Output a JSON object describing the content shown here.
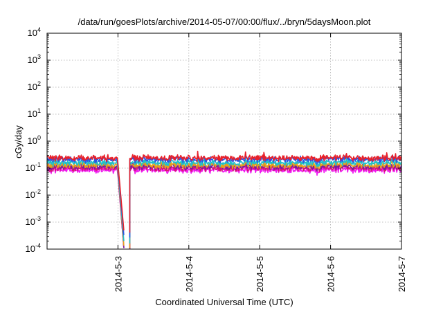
{
  "chart_data": {
    "type": "line",
    "title": "/data/run/goesPlots/archive/2014-05-07/00:00/flux/../bryn/5daysMoon.plot",
    "xlabel": "Coordinated Universal Time (UTC)",
    "ylabel": "cGy/day",
    "yscale": "log",
    "ylim": [
      0.0001,
      10000
    ],
    "y_ticks": [
      {
        "value": 0.0001,
        "base": "10",
        "exp": "-4"
      },
      {
        "value": 0.001,
        "base": "10",
        "exp": "-3"
      },
      {
        "value": 0.01,
        "base": "10",
        "exp": "-2"
      },
      {
        "value": 0.1,
        "base": "10",
        "exp": "-1"
      },
      {
        "value": 1,
        "base": "10",
        "exp": "0"
      },
      {
        "value": 10,
        "base": "10",
        "exp": "1"
      },
      {
        "value": 100,
        "base": "10",
        "exp": "2"
      },
      {
        "value": 1000,
        "base": "10",
        "exp": "3"
      },
      {
        "value": 10000,
        "base": "10",
        "exp": "4"
      }
    ],
    "xlim": [
      "2014-05-02 00:00",
      "2014-05-07 00:00"
    ],
    "x_ticks": [
      {
        "value": "2014-05-03 00:00",
        "label": "2014-5-3"
      },
      {
        "value": "2014-05-04 00:00",
        "label": "2014-5-4"
      },
      {
        "value": "2014-05-05 00:00",
        "label": "2014-5-5"
      },
      {
        "value": "2014-05-06 00:00",
        "label": "2014-5-6"
      },
      {
        "value": "2014-05-07 00:00",
        "label": "2014-5-7"
      }
    ],
    "grid": true,
    "legend": "none",
    "series": [
      {
        "color": "#e8202a",
        "baseline": 0.24,
        "drop_floor": 0.00045
      },
      {
        "color": "#2a55e6",
        "baseline": 0.21,
        "drop_floor": 0.0003
      },
      {
        "color": "#20c0c8",
        "baseline": 0.16,
        "drop_floor": 0.00018
      },
      {
        "color": "#e8a01a",
        "baseline": 0.13,
        "drop_floor": 0.00012
      },
      {
        "color": "#7a1aa0",
        "baseline": 0.115,
        "drop_floor": 0.0001
      },
      {
        "color": "#d81870",
        "baseline": 0.1,
        "drop_floor": 0.0001
      },
      {
        "color": "#f018f0",
        "baseline": 0.085,
        "drop_floor": 0.0001
      }
    ],
    "data_gap": {
      "start": "2014-05-02 23:50",
      "end": "2014-05-03 04:00"
    }
  }
}
